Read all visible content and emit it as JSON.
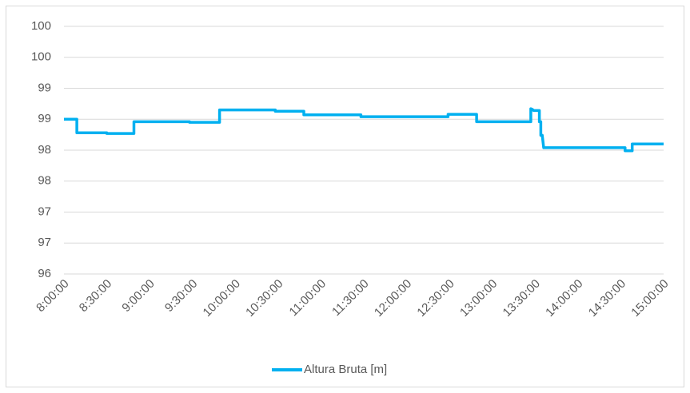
{
  "chart_data": {
    "type": "line",
    "x": [
      "8:00:00",
      "8:09:00",
      "8:09:00",
      "8:30:00",
      "8:30:00",
      "8:49:00",
      "8:49:00",
      "9:28:00",
      "9:28:00",
      "9:49:00",
      "9:49:00",
      "10:28:00",
      "10:28:00",
      "10:48:00",
      "10:48:00",
      "11:28:00",
      "11:28:00",
      "12:29:00",
      "12:29:00",
      "12:49:00",
      "12:49:00",
      "13:27:00",
      "13:27:00",
      "13:28:00",
      "13:29:00",
      "13:33:00",
      "13:33:00",
      "13:34:00",
      "13:34:00",
      "13:35:00",
      "13:36:00",
      "14:33:00",
      "14:33:00",
      "14:38:00",
      "14:38:00",
      "15:00:00"
    ],
    "series": [
      {
        "name": "Altura Bruta [m]",
        "color": "#00b0f0",
        "values": [
          98.5,
          98.5,
          98.28,
          98.28,
          98.27,
          98.27,
          98.46,
          98.46,
          98.45,
          98.45,
          98.65,
          98.65,
          98.63,
          98.63,
          98.57,
          98.57,
          98.54,
          98.54,
          98.58,
          98.58,
          98.46,
          98.46,
          98.67,
          98.66,
          98.64,
          98.64,
          98.46,
          98.46,
          98.24,
          98.24,
          98.04,
          98.04,
          97.99,
          97.99,
          98.1,
          98.1
        ]
      }
    ],
    "xlim": [
      "8:00:00",
      "15:00:00"
    ],
    "xticks": [
      "8:00:00",
      "8:30:00",
      "9:00:00",
      "9:30:00",
      "10:00:00",
      "10:30:00",
      "11:00:00",
      "11:30:00",
      "12:00:00",
      "12:30:00",
      "13:00:00",
      "13:30:00",
      "14:00:00",
      "14:30:00",
      "15:00:00"
    ],
    "ylim": [
      96,
      100
    ],
    "yticks": [
      96,
      {
        "value": 96.5,
        "label": "97"
      },
      97,
      {
        "value": 97.5,
        "label": "98"
      },
      98,
      {
        "value": 98.5,
        "label": "99"
      },
      99,
      {
        "value": 99.5,
        "label": "100"
      },
      100
    ],
    "grid": true,
    "legend": "bottom"
  }
}
